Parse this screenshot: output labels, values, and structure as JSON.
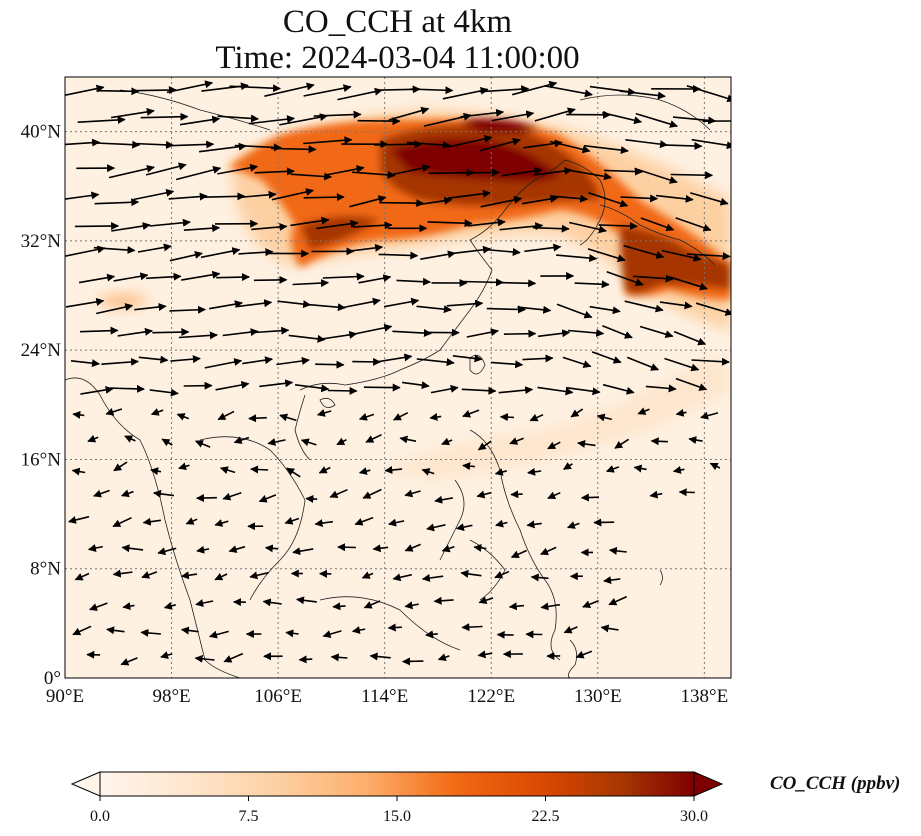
{
  "title": {
    "line1": "CO_CCH at 4km",
    "line2": "Time: 2024-03-04 11:00:00"
  },
  "map": {
    "lon_range": [
      90,
      140
    ],
    "lat_range": [
      0,
      44
    ],
    "lon_ticks": [
      {
        "value": 90,
        "label": "90°E"
      },
      {
        "value": 98,
        "label": "98°E"
      },
      {
        "value": 106,
        "label": "106°E"
      },
      {
        "value": 114,
        "label": "114°E"
      },
      {
        "value": 122,
        "label": "122°E"
      },
      {
        "value": 130,
        "label": "130°E"
      },
      {
        "value": 138,
        "label": "138°E"
      }
    ],
    "lat_ticks": [
      {
        "value": 0,
        "label": "0°"
      },
      {
        "value": 8,
        "label": "8°N"
      },
      {
        "value": 16,
        "label": "16°N"
      },
      {
        "value": 24,
        "label": "24°N"
      },
      {
        "value": 32,
        "label": "32°N"
      },
      {
        "value": 40,
        "label": "40°N"
      }
    ],
    "gridlines": true,
    "colormap": [
      "#fff5eb",
      "#fee6ce",
      "#fdd0a2",
      "#fdae6b",
      "#fd8d3c",
      "#f16913",
      "#d94801",
      "#a63603",
      "#7f0000"
    ]
  },
  "colorbar": {
    "title": "CO_CCH (ppbv)",
    "min": 0,
    "max": 30,
    "ticks": [
      {
        "value": 0,
        "label": "0.0"
      },
      {
        "value": 7.5,
        "label": "7.5"
      },
      {
        "value": 15,
        "label": "15.0"
      },
      {
        "value": 22.5,
        "label": "22.5"
      },
      {
        "value": 30,
        "label": "30.0"
      }
    ],
    "extend": "both"
  }
}
